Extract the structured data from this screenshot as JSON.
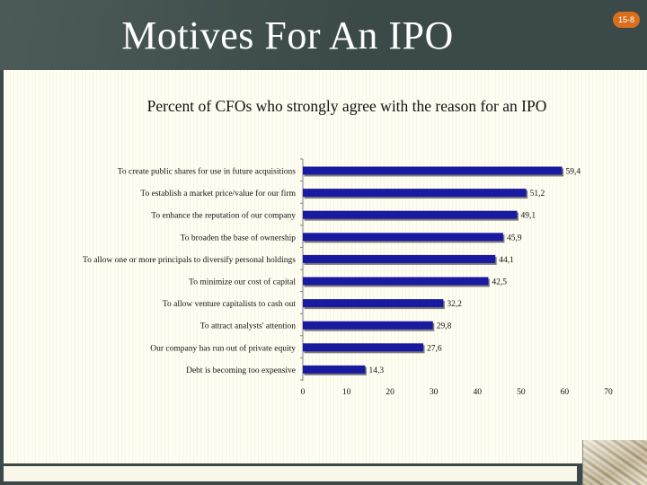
{
  "slide": {
    "title": "Motives For An IPO",
    "number": "15-8",
    "header_color": "#3b4a48",
    "badge_color": "#d86f1f"
  },
  "chart_data": {
    "type": "bar",
    "orientation": "horizontal",
    "title": "Percent of CFOs who strongly agree with the reason for an IPO",
    "categories": [
      "To create public shares for use in future acquisitions",
      "To establish a market price/value for our firm",
      "To enhance the reputation of our company",
      "To broaden the base of ownership",
      "To allow one or more principals to diversify personal holdings",
      "To minimize our cost of capital",
      "To allow venture capitalists to cash out",
      "To attract analysts' attention",
      "Our company has run out of private equity",
      "Debt is becoming too expensive"
    ],
    "values": [
      59.4,
      51.2,
      49.1,
      45.9,
      44.1,
      42.5,
      32.2,
      29.8,
      27.6,
      14.3
    ],
    "value_labels": [
      "59,4",
      "51,2",
      "49,1",
      "45,9",
      "44,1",
      "42,5",
      "32,2",
      "29,8",
      "27,6",
      "14,3"
    ],
    "xlim": [
      0,
      70
    ],
    "xticks": [
      "0",
      "10",
      "20",
      "30",
      "40",
      "50",
      "60",
      "70"
    ],
    "bar_color": "#1a1aa0",
    "grid": false
  }
}
